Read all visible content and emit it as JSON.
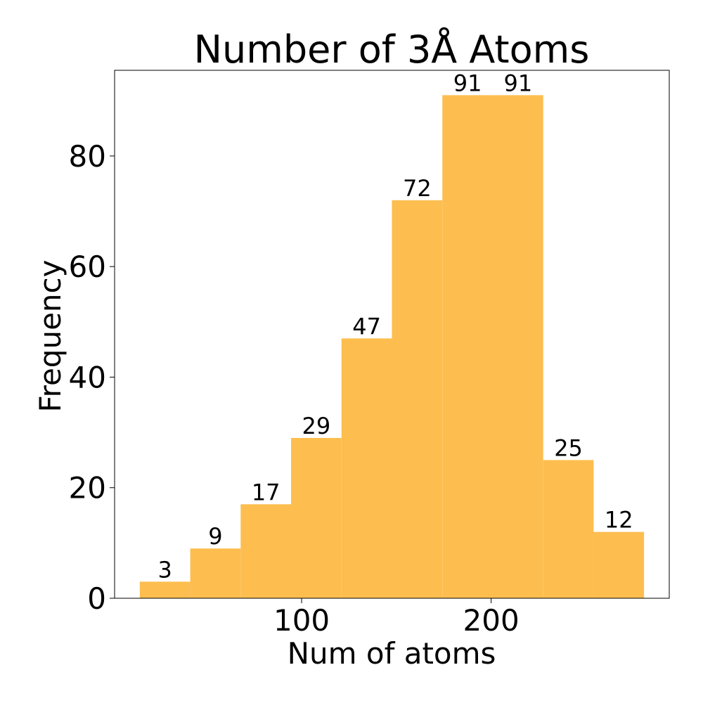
{
  "chart_data": {
    "type": "bar",
    "title": "Number of 3Å Atoms",
    "xlabel": "Num of atoms",
    "ylabel": "Frequency",
    "bin_edges": [
      14.6,
      41.21,
      67.82,
      94.43,
      121.04,
      147.65,
      174.26,
      200.87,
      227.48,
      254.09,
      280.7
    ],
    "values": [
      3,
      9,
      17,
      29,
      47,
      72,
      91,
      91,
      25,
      12
    ],
    "xlim": [
      1.3,
      294.0
    ],
    "ylim": [
      0,
      95.5
    ],
    "x_ticks": [
      100,
      200
    ],
    "y_ticks": [
      0,
      20,
      40,
      60,
      80
    ],
    "bar_color": "#fdbe4f",
    "grid": false
  }
}
